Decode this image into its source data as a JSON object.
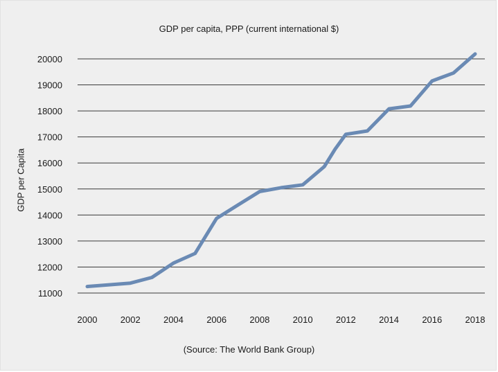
{
  "chart_data": {
    "type": "line",
    "title": "GDP per capita, PPP (current international $)",
    "ylabel": "GDP per Capita",
    "xlabel": "",
    "source": "(Source: The World Bank Group)",
    "ylim": [
      11000,
      20000
    ],
    "yticks": [
      11000,
      12000,
      13000,
      14000,
      15000,
      16000,
      17000,
      18000,
      19000,
      20000
    ],
    "xlim": [
      2000,
      2018
    ],
    "xticks": [
      2000,
      2002,
      2004,
      2006,
      2008,
      2010,
      2012,
      2014,
      2016,
      2018
    ],
    "grid": true,
    "line_color": "#6a8ab4",
    "series": [
      {
        "x": [
          2000,
          2002,
          2003,
          2004,
          2005,
          2006,
          2007,
          2008,
          2009,
          2010,
          2011,
          2011.5,
          2012,
          2013,
          2014,
          2015,
          2016,
          2017,
          2018
        ],
        "values": [
          11250,
          11380,
          11600,
          12150,
          12520,
          13870,
          14390,
          14900,
          15050,
          15160,
          15860,
          16530,
          17100,
          17230,
          18080,
          18190,
          19150,
          19460,
          20190
        ]
      }
    ]
  }
}
